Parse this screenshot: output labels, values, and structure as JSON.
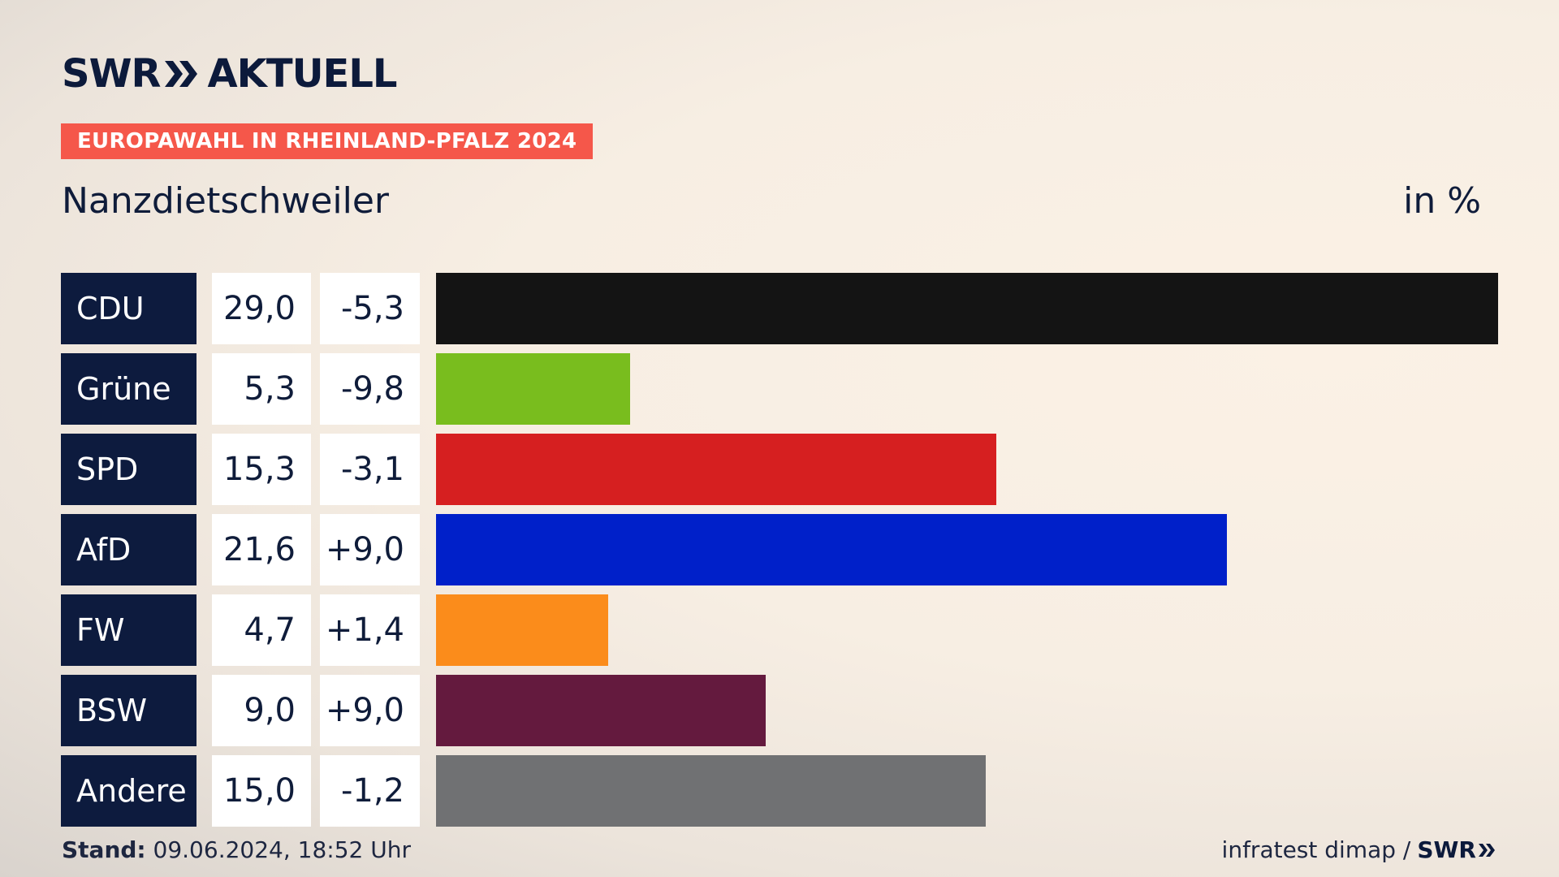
{
  "brand": {
    "swr": "SWR",
    "aktuell": "AKTUELL"
  },
  "tag": "EUROPAWAHL IN RHEINLAND-PFALZ 2024",
  "place": "Nanzdietschweiler",
  "unit": "in %",
  "chart_data": {
    "type": "bar",
    "orientation": "horizontal",
    "categories": [
      "CDU",
      "Grüne",
      "SPD",
      "AfD",
      "FW",
      "BSW",
      "Andere"
    ],
    "values": [
      29.0,
      5.3,
      15.3,
      21.6,
      4.7,
      9.0,
      15.0
    ],
    "value_labels": [
      "29,0",
      "5,3",
      "15,3",
      "21,6",
      "4,7",
      "9,0",
      "15,0"
    ],
    "diff_labels": [
      "-5,3",
      "-9,8",
      "-3,1",
      "+9,0",
      "+1,4",
      "+9,0",
      "-1,2"
    ],
    "colors": [
      "#141414",
      "#79bd1e",
      "#d61f20",
      "#0020c9",
      "#fb8c1b",
      "#641a3e",
      "#707173"
    ],
    "xlim": [
      0,
      29.0
    ]
  },
  "footer": {
    "stand_label": "Stand:",
    "stand_value": "09.06.2024, 18:52 Uhr",
    "source": "infratest dimap /",
    "source_brand": "SWR"
  }
}
